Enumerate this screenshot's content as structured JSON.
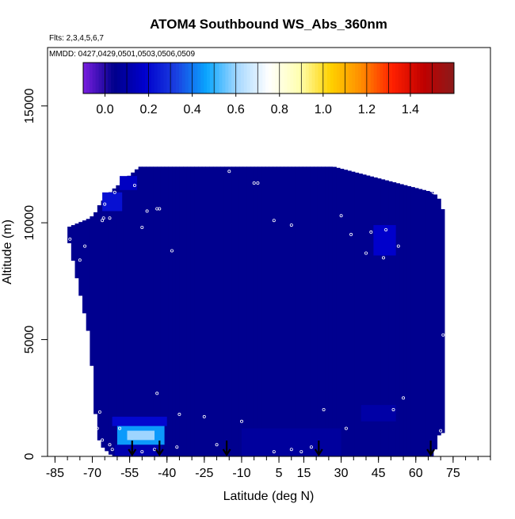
{
  "chart_data": {
    "type": "heatmap",
    "title": "ATOM4 Southbound WS_Abs_360nm",
    "subtitle_flights": "Flts: 2,3,4,5,6,7",
    "subtitle_dates": "MMDD: 0427,0429,0501,0503,0506,0509",
    "xlabel": "Latitude (deg N)",
    "ylabel": "Altitude (m)",
    "xlim": [
      -88,
      90
    ],
    "ylim": [
      0,
      17500
    ],
    "x_ticks": [
      -85,
      -70,
      -55,
      -40,
      -25,
      -10,
      5,
      15,
      30,
      45,
      60,
      75
    ],
    "y_ticks": [
      0,
      5000,
      10000,
      15000
    ],
    "colorbar": {
      "ticks": [
        0.0,
        0.2,
        0.4,
        0.6,
        0.8,
        1.0,
        1.2,
        1.4
      ],
      "tick_labels": [
        "0.0",
        "0.2",
        "0.4",
        "0.6",
        "0.8",
        "1.0",
        "1.2",
        "1.4"
      ],
      "range": [
        -0.1,
        1.6
      ],
      "colors": [
        "#7a1ee0",
        "#00008b",
        "#0000cd",
        "#1a3fe0",
        "#0aa6ff",
        "#a7d8ff",
        "#ffffff",
        "#ffffb0",
        "#ffd200",
        "#ff8c00",
        "#ff2000",
        "#c00000",
        "#8b1a1a"
      ]
    },
    "background_value": 0.05,
    "coverage": {
      "latitude": [
        -80,
        -71,
        -69,
        -67,
        -62,
        -51,
        27,
        67,
        69.5,
        71
      ],
      "alt_top": [
        9800,
        10200,
        10400,
        10800,
        11400,
        12400,
        12400,
        11300,
        11000,
        10500
      ],
      "alt_bottom": [
        9500,
        5000,
        2000,
        500,
        0,
        0,
        0,
        0,
        1000,
        1000
      ]
    },
    "features": [
      {
        "lat": [
          -61,
          -42
        ],
        "alt": [
          0,
          500
        ],
        "value": 0.12
      },
      {
        "lat": [
          -60,
          -41
        ],
        "alt": [
          500,
          1400
        ],
        "value": 0.45
      },
      {
        "lat": [
          -56,
          -45
        ],
        "alt": [
          700,
          1100
        ],
        "value": 0.6
      },
      {
        "lat": [
          -62,
          -40
        ],
        "alt": [
          1300,
          1700
        ],
        "value": 0.2
      },
      {
        "lat": [
          -66,
          -58
        ],
        "alt": [
          10500,
          11300
        ],
        "value": 0.22
      },
      {
        "lat": [
          -59,
          -52
        ],
        "alt": [
          11400,
          12000
        ],
        "value": 0.16
      },
      {
        "lat": [
          38,
          52
        ],
        "alt": [
          1500,
          2200
        ],
        "value": 0.1
      },
      {
        "lat": [
          43,
          52
        ],
        "alt": [
          8600,
          9900
        ],
        "value": 0.18
      },
      {
        "lat": [
          -10,
          30
        ],
        "alt": [
          0,
          1200
        ],
        "value": 0.08
      }
    ],
    "sample_points": [
      {
        "x": -79,
        "y": 9300
      },
      {
        "x": -73,
        "y": 9000
      },
      {
        "x": -75,
        "y": 8400
      },
      {
        "x": -66,
        "y": 10100
      },
      {
        "x": -65.5,
        "y": 10200
      },
      {
        "x": -65,
        "y": 10800
      },
      {
        "x": -63,
        "y": 10200
      },
      {
        "x": -61,
        "y": 11300
      },
      {
        "x": -53,
        "y": 11600
      },
      {
        "x": -48,
        "y": 10500
      },
      {
        "x": -44,
        "y": 10600
      },
      {
        "x": -43,
        "y": 10600
      },
      {
        "x": -50,
        "y": 9800
      },
      {
        "x": -38,
        "y": 8800
      },
      {
        "x": -15,
        "y": 12200
      },
      {
        "x": -5,
        "y": 11700
      },
      {
        "x": -3.5,
        "y": 11700
      },
      {
        "x": 3,
        "y": 10100
      },
      {
        "x": 10,
        "y": 9900
      },
      {
        "x": 30,
        "y": 10300
      },
      {
        "x": 34,
        "y": 9500
      },
      {
        "x": 42,
        "y": 9600
      },
      {
        "x": 48,
        "y": 9700
      },
      {
        "x": 53,
        "y": 9000
      },
      {
        "x": 40,
        "y": 8700
      },
      {
        "x": 47,
        "y": 8500
      },
      {
        "x": 67,
        "y": 11300
      },
      {
        "x": 71,
        "y": 5200
      },
      {
        "x": 70,
        "y": 1100
      },
      {
        "x": 55,
        "y": 2500
      },
      {
        "x": 51,
        "y": 2000
      },
      {
        "x": 32,
        "y": 1200
      },
      {
        "x": 23,
        "y": 2000
      },
      {
        "x": -44,
        "y": 2700
      },
      {
        "x": -35,
        "y": 1800
      },
      {
        "x": -25,
        "y": 1700
      },
      {
        "x": -10,
        "y": 1500
      },
      {
        "x": -67,
        "y": 1900
      },
      {
        "x": -68,
        "y": 1200
      },
      {
        "x": -66,
        "y": 700
      },
      {
        "x": -63,
        "y": 500
      },
      {
        "x": -62,
        "y": 300
      },
      {
        "x": -50,
        "y": 200
      },
      {
        "x": -45,
        "y": 300
      },
      {
        "x": -36,
        "y": 400
      },
      {
        "x": -20,
        "y": 500
      },
      {
        "x": 3,
        "y": 200
      },
      {
        "x": 14,
        "y": 200
      },
      {
        "x": 18,
        "y": 400
      },
      {
        "x": 10,
        "y": 300
      },
      {
        "x": -59,
        "y": 1200
      }
    ],
    "arrows_lat": [
      -54,
      -43,
      -16,
      21,
      66
    ]
  }
}
